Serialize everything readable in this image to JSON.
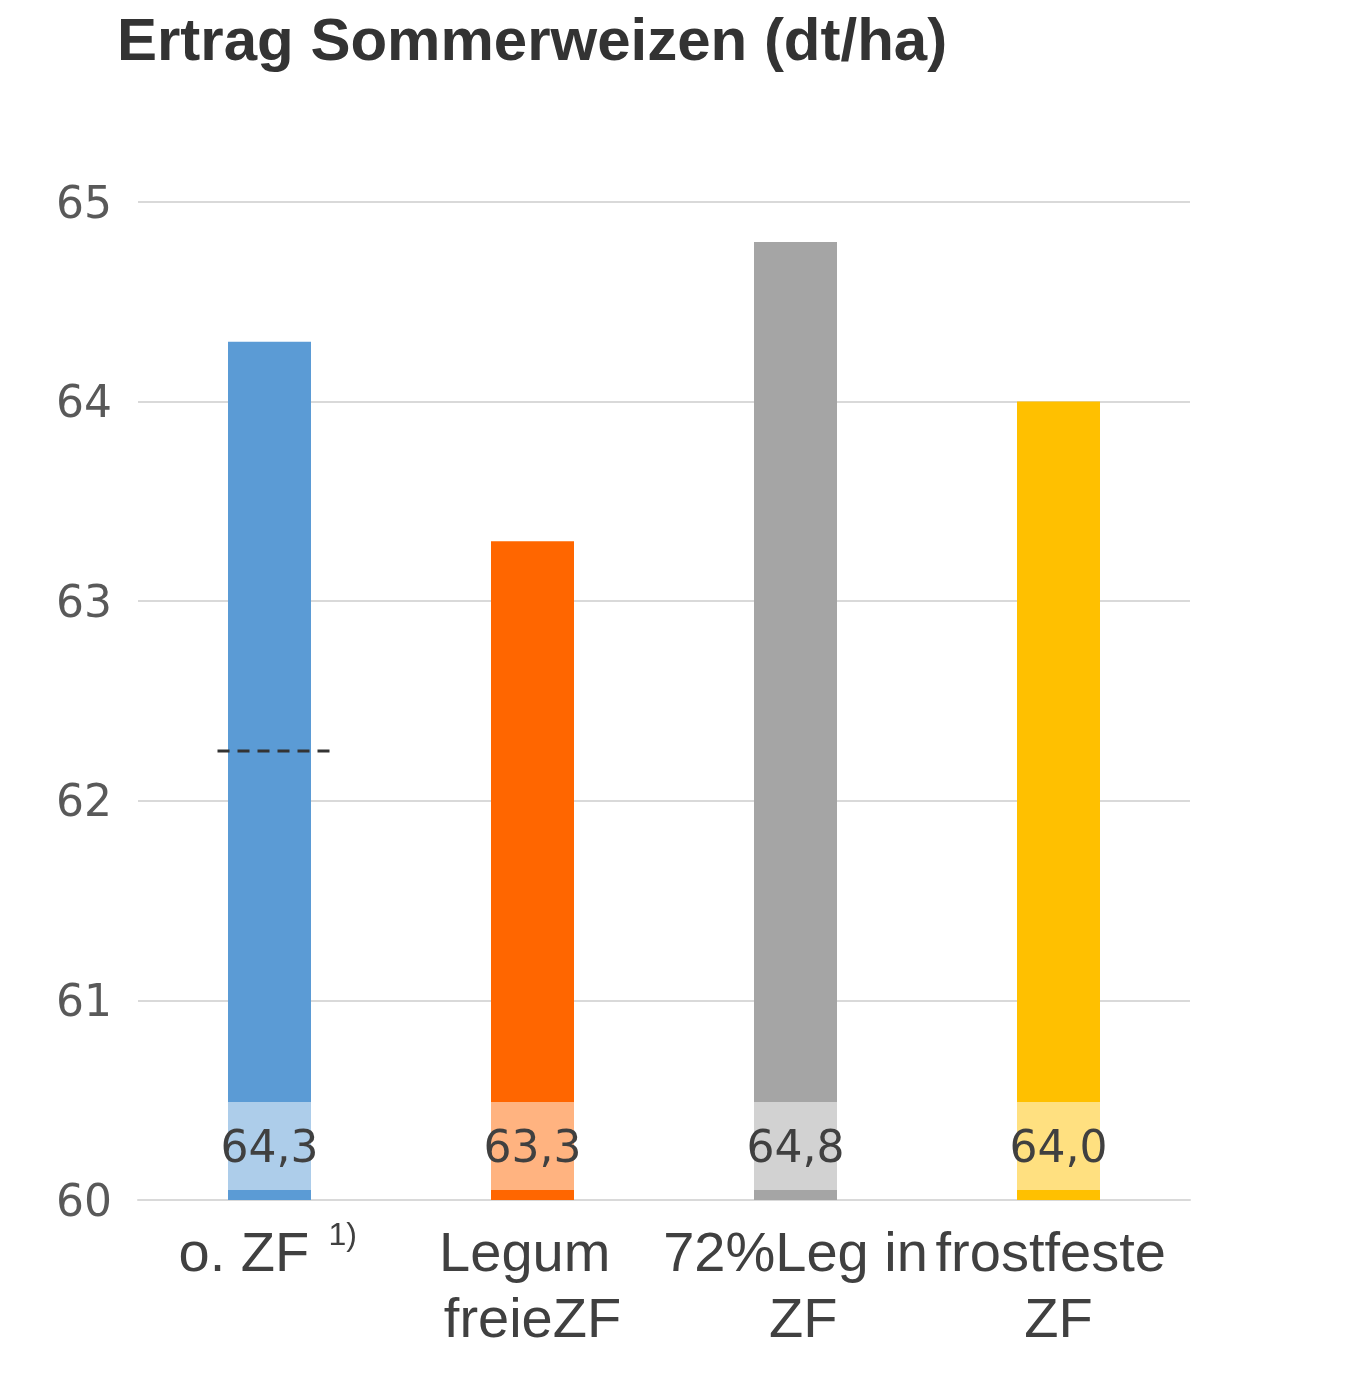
{
  "chart_data": {
    "type": "bar",
    "title": "Ertrag Sommerweizen (dt/ha)",
    "categories": [
      "o. ZF $^{1)}$",
      "Legum freieZF",
      "72%Leg in ZF",
      "frostfeste ZF"
    ],
    "values": [
      64.3,
      63.3,
      64.8,
      64.0
    ],
    "colors": [
      "#5b9bd5",
      "#ff6600",
      "#a5a5a5",
      "#ffc000"
    ],
    "value_labels": [
      "64,3",
      "63,3",
      "64,8",
      "64,0"
    ],
    "ylim": [
      60,
      65
    ],
    "yticks": [
      60,
      61,
      62,
      63,
      64,
      65
    ],
    "grid": "y",
    "ref_lines": [
      {
        "axis": "y",
        "value": 62.25,
        "color": "#333333",
        "line_style": "dashed"
      }
    ]
  }
}
